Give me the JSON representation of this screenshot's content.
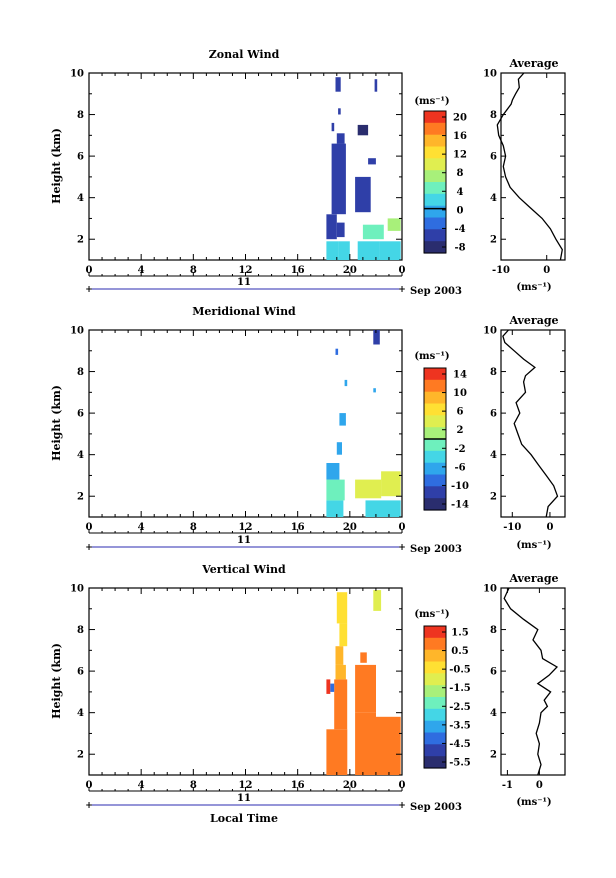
{
  "panels": [
    {
      "id": "zonal",
      "title": "Zonal Wind",
      "ylabel": "Height (km)",
      "yticks": [
        "2",
        "4",
        "6",
        "8",
        "10"
      ],
      "xticks": [
        "0",
        "4",
        "8",
        "12",
        "16",
        "20",
        "0"
      ],
      "day": "11",
      "date_label": "Sep 2003",
      "cb_unit": "(ms⁻¹)",
      "cb_ticks": [
        "20",
        "16",
        "12",
        "8",
        "4",
        "0",
        "-4",
        "-8"
      ],
      "avg_title": "Average",
      "avg_xticks": [
        "-10",
        "0"
      ],
      "avg_yticks": [
        "2",
        "4",
        "6",
        "8",
        "10"
      ],
      "avg_unit": "(ms⁻¹)",
      "xlabel": ""
    },
    {
      "id": "meridional",
      "title": "Meridional Wind",
      "ylabel": "Height (km)",
      "yticks": [
        "2",
        "4",
        "6",
        "8",
        "10"
      ],
      "xticks": [
        "0",
        "4",
        "8",
        "12",
        "16",
        "20",
        "0"
      ],
      "day": "11",
      "date_label": "Sep 2003",
      "cb_unit": "(ms⁻¹)",
      "cb_ticks": [
        "14",
        "10",
        "6",
        "2",
        "-2",
        "-6",
        "-10",
        "-14"
      ],
      "avg_title": "Average",
      "avg_xticks": [
        "-10",
        "0"
      ],
      "avg_yticks": [
        "2",
        "4",
        "6",
        "8",
        "10"
      ],
      "avg_unit": "(ms⁻¹)",
      "xlabel": ""
    },
    {
      "id": "vertical",
      "title": "Vertical Wind",
      "ylabel": "Height (km)",
      "yticks": [
        "2",
        "4",
        "6",
        "8",
        "10"
      ],
      "xticks": [
        "0",
        "4",
        "8",
        "12",
        "16",
        "20",
        "0"
      ],
      "day": "11",
      "date_label": "Sep 2003",
      "cb_unit": "(ms⁻¹)",
      "cb_ticks": [
        "1.5",
        "0.5",
        "-0.5",
        "-1.5",
        "-2.5",
        "-3.5",
        "-4.5",
        "-5.5"
      ],
      "avg_title": "Average",
      "avg_xticks": [
        "-1",
        "0"
      ],
      "avg_yticks": [
        "2",
        "4",
        "6",
        "8",
        "10"
      ],
      "avg_unit": "(ms⁻¹)",
      "xlabel": "Local Time"
    }
  ],
  "colors": {
    "colormap": [
      "#2a2d6e",
      "#2f3fa8",
      "#2f6de0",
      "#2fa6ec",
      "#44d6e6",
      "#6ef0bd",
      "#a8f07a",
      "#e0ee50",
      "#ffe033",
      "#ffb62a",
      "#ff7a22",
      "#ee3420"
    ]
  },
  "chart_data": [
    {
      "type": "heatmap",
      "title": "Zonal Wind",
      "xlabel": "",
      "ylabel": "Height (km)",
      "xlim": [
        0,
        24
      ],
      "ylim": [
        1,
        10
      ],
      "x_unit": "local time (h)",
      "colorbar_range": [
        -10,
        22
      ],
      "colorbar_zero_line": 0,
      "cells": [
        {
          "x0": 18.2,
          "x1": 19.1,
          "y0": 1.0,
          "y1": 1.9,
          "v": 2
        },
        {
          "x0": 19.1,
          "x1": 20.0,
          "y0": 1.0,
          "y1": 1.9,
          "v": 1
        },
        {
          "x0": 20.6,
          "x1": 22.3,
          "y0": 1.0,
          "y1": 1.9,
          "v": 1
        },
        {
          "x0": 22.3,
          "x1": 23.9,
          "y0": 1.0,
          "y1": 1.9,
          "v": 3
        },
        {
          "x0": 18.2,
          "x1": 19.0,
          "y0": 2.0,
          "y1": 3.2,
          "v": -6
        },
        {
          "x0": 19.0,
          "x1": 19.6,
          "y0": 2.1,
          "y1": 2.8,
          "v": -5
        },
        {
          "x0": 21.0,
          "x1": 22.6,
          "y0": 2.0,
          "y1": 2.7,
          "v": 4
        },
        {
          "x0": 22.9,
          "x1": 23.9,
          "y0": 2.4,
          "y1": 3.0,
          "v": 6
        },
        {
          "x0": 18.6,
          "x1": 19.7,
          "y0": 3.2,
          "y1": 6.6,
          "v": -6
        },
        {
          "x0": 20.4,
          "x1": 21.6,
          "y0": 3.3,
          "y1": 5.0,
          "v": -7
        },
        {
          "x0": 19.0,
          "x1": 19.6,
          "y0": 6.6,
          "y1": 7.1,
          "v": -6
        },
        {
          "x0": 20.6,
          "x1": 21.4,
          "y0": 7.0,
          "y1": 7.5,
          "v": -9
        },
        {
          "x0": 21.4,
          "x1": 22.0,
          "y0": 5.6,
          "y1": 5.9,
          "v": -6
        },
        {
          "x0": 18.6,
          "x1": 18.8,
          "y0": 7.2,
          "y1": 7.6,
          "v": -6
        },
        {
          "x0": 18.9,
          "x1": 19.3,
          "y0": 9.1,
          "y1": 9.8,
          "v": -7
        },
        {
          "x0": 21.9,
          "x1": 22.1,
          "y0": 9.1,
          "y1": 9.7,
          "v": -6
        },
        {
          "x0": 19.1,
          "x1": 19.3,
          "y0": 8.0,
          "y1": 8.3,
          "v": -6
        }
      ]
    },
    {
      "type": "heatmap",
      "title": "Meridional Wind",
      "xlabel": "",
      "ylabel": "Height (km)",
      "xlim": [
        0,
        24
      ],
      "ylim": [
        1,
        10
      ],
      "x_unit": "local time (h)",
      "colorbar_range": [
        -16,
        16
      ],
      "colorbar_zero_line": 0,
      "cells": [
        {
          "x0": 18.2,
          "x1": 19.5,
          "y0": 1.0,
          "y1": 1.8,
          "v": -4
        },
        {
          "x0": 21.2,
          "x1": 23.9,
          "y0": 1.0,
          "y1": 1.8,
          "v": -3
        },
        {
          "x0": 18.2,
          "x1": 19.6,
          "y0": 1.8,
          "y1": 2.8,
          "v": -2
        },
        {
          "x0": 20.4,
          "x1": 22.4,
          "y0": 1.9,
          "y1": 2.8,
          "v": 3
        },
        {
          "x0": 22.4,
          "x1": 23.9,
          "y0": 2.0,
          "y1": 3.2,
          "v": 4
        },
        {
          "x0": 18.2,
          "x1": 19.2,
          "y0": 2.8,
          "y1": 3.6,
          "v": -6
        },
        {
          "x0": 19.0,
          "x1": 19.4,
          "y0": 4.0,
          "y1": 4.6,
          "v": -8
        },
        {
          "x0": 19.2,
          "x1": 19.7,
          "y0": 5.4,
          "y1": 6.0,
          "v": -7
        },
        {
          "x0": 19.6,
          "x1": 19.8,
          "y0": 7.3,
          "y1": 7.6,
          "v": -8
        },
        {
          "x0": 21.8,
          "x1": 22.0,
          "y0": 7.0,
          "y1": 7.2,
          "v": -8
        },
        {
          "x0": 21.8,
          "x1": 22.3,
          "y0": 9.3,
          "y1": 10.0,
          "v": -12
        },
        {
          "x0": 18.9,
          "x1": 19.1,
          "y0": 8.8,
          "y1": 9.1,
          "v": -10
        }
      ]
    },
    {
      "type": "heatmap",
      "title": "Vertical Wind",
      "xlabel": "Local Time",
      "ylabel": "Height (km)",
      "xlim": [
        0,
        24
      ],
      "ylim": [
        1,
        10
      ],
      "x_unit": "local time (h)",
      "colorbar_range": [
        -6,
        2
      ],
      "cells": [
        {
          "x0": 18.2,
          "x1": 19.8,
          "y0": 1.0,
          "y1": 3.2,
          "v": 0.9
        },
        {
          "x0": 18.8,
          "x1": 19.8,
          "y0": 3.2,
          "y1": 5.6,
          "v": 1.0
        },
        {
          "x0": 18.9,
          "x1": 19.7,
          "y0": 5.6,
          "y1": 6.3,
          "v": 0.6
        },
        {
          "x0": 20.4,
          "x1": 22.0,
          "y0": 4.0,
          "y1": 6.3,
          "v": 1.0
        },
        {
          "x0": 22.0,
          "x1": 23.9,
          "y0": 1.0,
          "y1": 3.8,
          "v": 1.1
        },
        {
          "x0": 20.4,
          "x1": 22.0,
          "y0": 1.0,
          "y1": 4.0,
          "v": 0.9
        },
        {
          "x0": 18.9,
          "x1": 19.5,
          "y0": 6.3,
          "y1": 7.2,
          "v": 0.3
        },
        {
          "x0": 19.2,
          "x1": 19.8,
          "y0": 7.2,
          "y1": 8.3,
          "v": -0.2
        },
        {
          "x0": 19.0,
          "x1": 19.8,
          "y0": 8.3,
          "y1": 9.8,
          "v": -0.6
        },
        {
          "x0": 21.8,
          "x1": 22.4,
          "y0": 8.9,
          "y1": 9.9,
          "v": -0.8
        },
        {
          "x0": 20.8,
          "x1": 21.3,
          "y0": 6.4,
          "y1": 6.9,
          "v": 1.0
        },
        {
          "x0": 18.2,
          "x1": 18.5,
          "y0": 4.9,
          "y1": 5.6,
          "v": 1.9
        },
        {
          "x0": 18.5,
          "x1": 18.8,
          "y0": 5.0,
          "y1": 5.4,
          "v": -4.5
        }
      ]
    },
    {
      "type": "line",
      "title": "Average",
      "xlabel": "(ms⁻¹)",
      "ylabel": "",
      "xlim": [
        -10,
        4
      ],
      "ylim": [
        1,
        10
      ],
      "series": [
        {
          "x": [
            3.0,
            3.4,
            2.0,
            0.8,
            -1.0,
            -3.5,
            -6.0,
            -8.0,
            -9.0,
            -9.5,
            -9.0,
            -9.5,
            -10.5,
            -10.8,
            -9.5,
            -7.8,
            -7.5,
            -6.8,
            -6.0,
            -6.2,
            -5.0
          ],
          "y": [
            1.0,
            1.5,
            2.0,
            2.5,
            3.0,
            3.5,
            4.0,
            4.5,
            5.0,
            5.5,
            6.0,
            6.5,
            7.0,
            7.5,
            8.0,
            8.5,
            8.7,
            9.0,
            9.3,
            9.7,
            10.0
          ]
        }
      ]
    },
    {
      "type": "line",
      "title": "Average",
      "xlabel": "(ms⁻¹)",
      "ylabel": "",
      "xlim": [
        -13,
        4
      ],
      "ylim": [
        1,
        10
      ],
      "series": [
        {
          "x": [
            -1.0,
            -0.5,
            2.0,
            1.0,
            -1.0,
            -3.0,
            -5.0,
            -7.5,
            -8.5,
            -9.5,
            -8.0,
            -9.0,
            -6.5,
            -7.0,
            -6.5,
            -4.0,
            -7.0,
            -9.5,
            -12.0,
            -12.5,
            -11.0
          ],
          "y": [
            1.0,
            1.5,
            2.0,
            2.5,
            3.0,
            3.5,
            4.0,
            4.5,
            5.0,
            5.5,
            6.0,
            6.5,
            7.0,
            7.5,
            7.8,
            8.2,
            8.6,
            9.0,
            9.4,
            9.7,
            10.0
          ]
        }
      ]
    },
    {
      "type": "line",
      "title": "Average",
      "xlabel": "(ms⁻¹)",
      "ylabel": "",
      "xlim": [
        -1.2,
        0.8
      ],
      "ylim": [
        1,
        10
      ],
      "series": [
        {
          "x": [
            -0.05,
            0.05,
            -0.05,
            0.0,
            -0.1,
            0.0,
            0.05,
            0.25,
            0.15,
            0.35,
            -0.05,
            0.3,
            0.55,
            0.1,
            0.05,
            -0.2,
            -0.05,
            -0.5,
            -0.9,
            -1.1,
            -0.95
          ],
          "y": [
            1.0,
            1.5,
            2.0,
            2.5,
            3.0,
            3.5,
            4.0,
            4.3,
            4.6,
            5.0,
            5.4,
            5.8,
            6.2,
            6.6,
            7.0,
            7.5,
            8.0,
            8.5,
            9.0,
            9.5,
            10.0
          ]
        }
      ]
    }
  ]
}
